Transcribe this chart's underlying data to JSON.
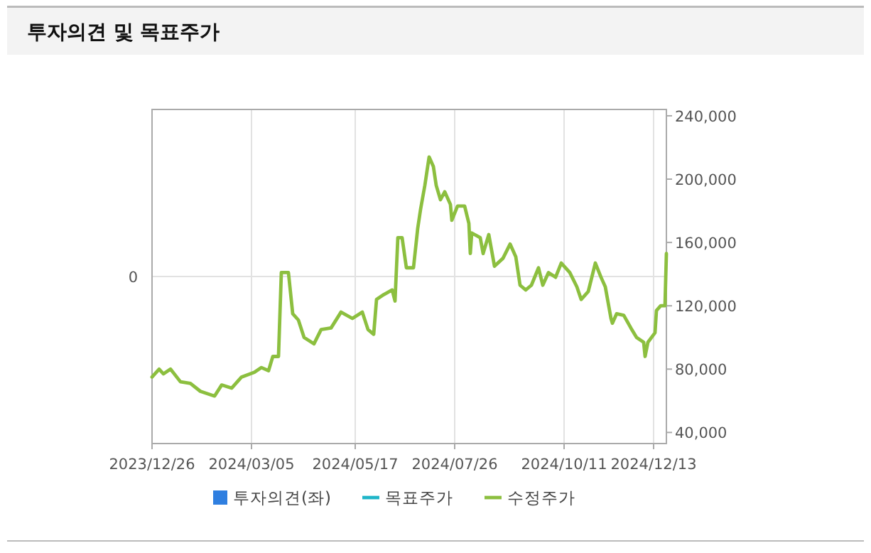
{
  "chart_data": {
    "type": "line",
    "title": "투자의견 및 목표주가",
    "x": [
      "2023-12-26",
      "2023-12-31",
      "2024-01-03",
      "2024-01-08",
      "2024-01-15",
      "2024-01-22",
      "2024-01-29",
      "2024-02-08",
      "2024-02-13",
      "2024-02-20",
      "2024-02-27",
      "2024-03-07",
      "2024-03-12",
      "2024-03-17",
      "2024-03-20",
      "2024-03-24",
      "2024-03-26",
      "2024-03-31",
      "2024-04-03",
      "2024-04-07",
      "2024-04-11",
      "2024-04-18",
      "2024-04-23",
      "2024-04-30",
      "2024-05-07",
      "2024-05-15",
      "2024-05-22",
      "2024-05-26",
      "2024-05-30",
      "2024-06-01",
      "2024-06-06",
      "2024-06-12",
      "2024-06-14",
      "2024-06-16",
      "2024-06-19",
      "2024-06-22",
      "2024-06-27",
      "2024-06-30",
      "2024-07-02",
      "2024-07-05",
      "2024-07-08",
      "2024-07-11",
      "2024-07-13",
      "2024-07-16",
      "2024-07-19",
      "2024-07-23",
      "2024-07-24",
      "2024-07-28",
      "2024-08-02",
      "2024-08-05",
      "2024-08-06",
      "2024-08-07",
      "2024-08-13",
      "2024-08-15",
      "2024-08-19",
      "2024-08-23",
      "2024-08-29",
      "2024-09-03",
      "2024-09-07",
      "2024-09-10",
      "2024-09-14",
      "2024-09-18",
      "2024-09-23",
      "2024-09-26",
      "2024-09-30",
      "2024-10-05",
      "2024-10-09",
      "2024-10-15",
      "2024-10-20",
      "2024-10-23",
      "2024-10-28",
      "2024-11-02",
      "2024-11-06",
      "2024-11-09",
      "2024-11-13",
      "2024-11-14",
      "2024-11-17",
      "2024-11-22",
      "2024-11-27",
      "2024-12-01",
      "2024-12-06",
      "2024-12-07",
      "2024-12-09",
      "2024-12-14",
      "2024-12-15",
      "2024-12-18",
      "2024-12-21",
      "2024-12-22"
    ],
    "series": [
      {
        "name": "투자의견(좌)",
        "type": "bar",
        "color": "#2f7fe0",
        "values": [
          null,
          null,
          null,
          null,
          null,
          null,
          null,
          null,
          null,
          null,
          null,
          null,
          null,
          null,
          null,
          null,
          null,
          null,
          null,
          null,
          null,
          null,
          null,
          null,
          null,
          null,
          null,
          null,
          null,
          null,
          null,
          null,
          null,
          null,
          null,
          null,
          null,
          null,
          null,
          null,
          null,
          null,
          null,
          null,
          null,
          null,
          null,
          null,
          null,
          null,
          null,
          null,
          null,
          null,
          null,
          null,
          null,
          null,
          null,
          null,
          null,
          null,
          null,
          null,
          null,
          null,
          null,
          null,
          null,
          null,
          null,
          null,
          null,
          null,
          null,
          null,
          null,
          null,
          null,
          null,
          null,
          null,
          null,
          null,
          null,
          null,
          null,
          null
        ]
      },
      {
        "name": "목표주가",
        "type": "line",
        "color": "#1fb5c8",
        "axis": "y2",
        "values": [
          null,
          null,
          null,
          null,
          null,
          null,
          null,
          null,
          null,
          null,
          null,
          null,
          null,
          null,
          null,
          null,
          null,
          null,
          null,
          null,
          null,
          null,
          null,
          null,
          null,
          null,
          null,
          null,
          null,
          null,
          null,
          null,
          null,
          null,
          null,
          null,
          null,
          null,
          null,
          null,
          null,
          null,
          null,
          null,
          null,
          null,
          null,
          null,
          null,
          null,
          null,
          null,
          null,
          null,
          null,
          null,
          null,
          null,
          null,
          null,
          null,
          null,
          null,
          null,
          null,
          null,
          null,
          null,
          null,
          null,
          null,
          null,
          null,
          null,
          null,
          null,
          null,
          null,
          null,
          null,
          null,
          null,
          null,
          null,
          null,
          null,
          null,
          null
        ]
      },
      {
        "name": "수정주가",
        "color": "#8cbf3f",
        "axis": "y2",
        "values": [
          75000,
          80000,
          77000,
          80000,
          72000,
          71000,
          66000,
          63000,
          70000,
          68000,
          75000,
          78000,
          81000,
          79000,
          88000,
          88000,
          141000,
          141000,
          115000,
          111000,
          100000,
          96000,
          105000,
          106000,
          116000,
          112000,
          116000,
          105000,
          102000,
          124000,
          127000,
          130000,
          123000,
          163000,
          163000,
          144000,
          144000,
          169000,
          181000,
          196000,
          214000,
          208000,
          196000,
          187000,
          192000,
          184000,
          174000,
          183000,
          183000,
          172000,
          153000,
          166000,
          163000,
          153000,
          165000,
          145000,
          150000,
          159000,
          151000,
          133000,
          130000,
          133000,
          144000,
          133000,
          141000,
          138000,
          147000,
          141000,
          132000,
          124000,
          129000,
          147000,
          138000,
          132000,
          112000,
          109000,
          115000,
          114000,
          106000,
          100000,
          97000,
          88000,
          97000,
          103000,
          117000,
          120000,
          120000,
          153000
        ]
      }
    ],
    "xlim": [
      "2023-12-26",
      "2024-12-22"
    ],
    "xticks": [
      {
        "value": "2023-12-26",
        "label": "2023/12/26"
      },
      {
        "value": "2024-03-05",
        "label": "2024/03/05"
      },
      {
        "value": "2024-05-17",
        "label": "2024/05/17"
      },
      {
        "value": "2024-07-26",
        "label": "2024/07/26"
      },
      {
        "value": "2024-10-11",
        "label": "2024/10/11"
      },
      {
        "value": "2024-12-13",
        "label": "2024/12/13"
      }
    ],
    "annotations": [
      "0"
    ],
    "y2lim": [
      33000,
      244000
    ],
    "y2ticks": [
      {
        "value": 40000,
        "label": "40,000"
      },
      {
        "value": 80000,
        "label": "80,000"
      },
      {
        "value": 120000,
        "label": "120,000"
      },
      {
        "value": 160000,
        "label": "160,000"
      },
      {
        "value": 200000,
        "label": "200,000"
      },
      {
        "value": 240000,
        "label": "240,000"
      }
    ],
    "grid": true,
    "legend": "bottom",
    "marker": "none",
    "line_style": "solid"
  }
}
